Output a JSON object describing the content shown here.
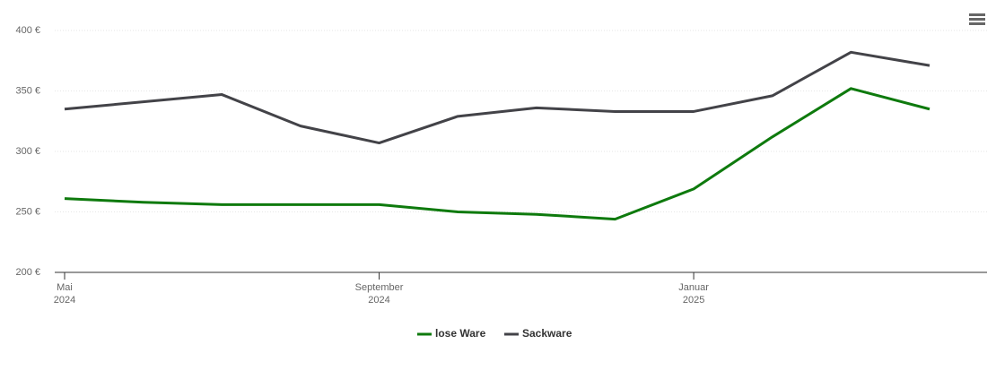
{
  "chart_data": {
    "type": "line",
    "x": [
      "2024-05",
      "2024-06",
      "2024-07",
      "2024-08",
      "2024-09",
      "2024-10",
      "2024-11",
      "2024-12",
      "2025-01",
      "2025-02",
      "2025-03",
      "2025-04"
    ],
    "series": [
      {
        "name": "lose Ware",
        "color": "#0e7a0d",
        "values": [
          261,
          258,
          256,
          256,
          256,
          250,
          248,
          244,
          269,
          312,
          352,
          335
        ]
      },
      {
        "name": "Sackware",
        "color": "#434348",
        "values": [
          335,
          341,
          347,
          321,
          307,
          329,
          336,
          333,
          333,
          346,
          382,
          371
        ]
      }
    ],
    "xlim": [
      "2024-05",
      "2025-04"
    ],
    "xticks": [
      {
        "value": "2024-05",
        "label": "Mai 2024"
      },
      {
        "value": "2024-09",
        "label": "September 2024"
      },
      {
        "value": "2025-01",
        "label": "Januar 2025"
      }
    ],
    "ylim": [
      200,
      400
    ],
    "yticks": [
      {
        "value": 200,
        "label": "200 €"
      },
      {
        "value": 250,
        "label": "250 €"
      },
      {
        "value": 300,
        "label": "300 €"
      },
      {
        "value": 350,
        "label": "350 €"
      },
      {
        "value": 400,
        "label": "400 €"
      }
    ],
    "grid": true,
    "legend": "bottom"
  }
}
